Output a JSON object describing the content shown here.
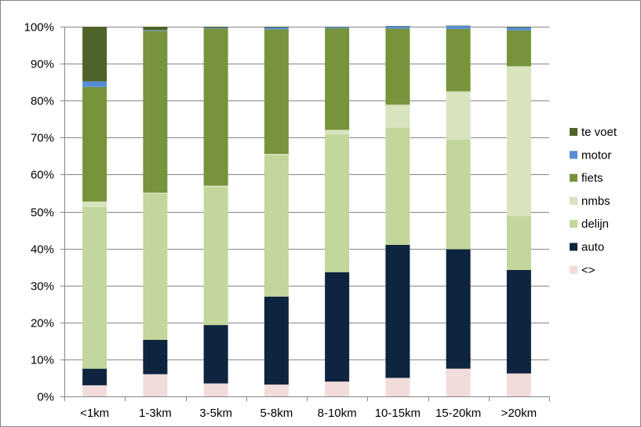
{
  "chart_data": {
    "type": "bar",
    "stacked": true,
    "percent": true,
    "categories": [
      "<1km",
      "1-3km",
      "3-5km",
      "5-8km",
      "8-10km",
      "10-15km",
      "15-20km",
      ">20km"
    ],
    "series": [
      {
        "name": "<>",
        "color": "#F2DCDB",
        "values": [
          3.0,
          6.0,
          3.5,
          3.2,
          4.0,
          5.0,
          7.5,
          6.2
        ]
      },
      {
        "name": "auto",
        "color": "#0F243E",
        "values": [
          4.5,
          9.3,
          15.8,
          23.8,
          29.6,
          36.0,
          32.3,
          28.0
        ]
      },
      {
        "name": "delijn",
        "color": "#C3D69B",
        "values": [
          43.7,
          39.5,
          37.3,
          38.3,
          37.2,
          31.7,
          29.7,
          14.6
        ]
      },
      {
        "name": "nmbs",
        "color": "#D7E4BD",
        "values": [
          1.5,
          0.3,
          0.4,
          0.3,
          1.3,
          6.2,
          13.0,
          40.5
        ]
      },
      {
        "name": "fiets",
        "color": "#77933C",
        "values": [
          31.0,
          43.8,
          42.5,
          33.7,
          27.5,
          20.6,
          16.9,
          9.7
        ]
      },
      {
        "name": "motor",
        "color": "#558ED5",
        "values": [
          1.5,
          0.2,
          0.2,
          0.5,
          0.3,
          0.6,
          0.8,
          0.8
        ]
      },
      {
        "name": "te voet",
        "color": "#4F6228",
        "values": [
          14.8,
          0.9,
          0.3,
          0.2,
          0.1,
          0.1,
          0.1,
          0.2
        ]
      }
    ],
    "legend_order": [
      "te voet",
      "motor",
      "fiets",
      "nmbs",
      "delijn",
      "auto",
      "<>"
    ],
    "yticks": [
      "0%",
      "10%",
      "20%",
      "30%",
      "40%",
      "50%",
      "60%",
      "70%",
      "80%",
      "90%",
      "100%"
    ],
    "ylim": [
      0,
      100
    ],
    "grid": true,
    "legend_position": "right"
  }
}
